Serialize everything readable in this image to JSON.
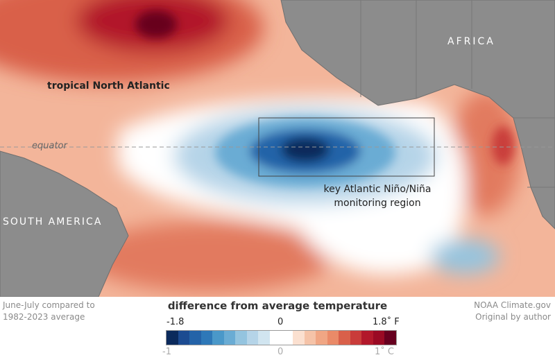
{
  "map": {
    "labels": {
      "north_atlantic": "tropical North Atlantic",
      "africa": "AFRICA",
      "south_america": "SOUTH AMERICA",
      "equator": "equator",
      "region_line1": "key Atlantic Niño/Niña",
      "region_line2": "monitoring region"
    }
  },
  "footer": {
    "left_line1": "June-July compared to",
    "left_line2": "1982-2023 average",
    "right_line1": "NOAA Climate.gov",
    "right_line2": "Original by author"
  },
  "legend": {
    "title": "difference from average temperature",
    "f_min": "-1.8",
    "f_mid": "0",
    "f_max": "1.8˚ F",
    "c_min": "-1",
    "c_mid": "0",
    "c_max": "1˚ C",
    "colors": [
      "#0b2a5c",
      "#1c4b91",
      "#2463a8",
      "#2e78b8",
      "#4a98c9",
      "#6aacd4",
      "#94c4df",
      "#b5d4e8",
      "#d1e5f0",
      "#ffffff",
      "#ffffff",
      "#fbe0d0",
      "#f5c3a8",
      "#f0a684",
      "#ea8a68",
      "#d9604a",
      "#c93c3a",
      "#b2182b",
      "#9a0a24",
      "#67001f"
    ]
  }
}
